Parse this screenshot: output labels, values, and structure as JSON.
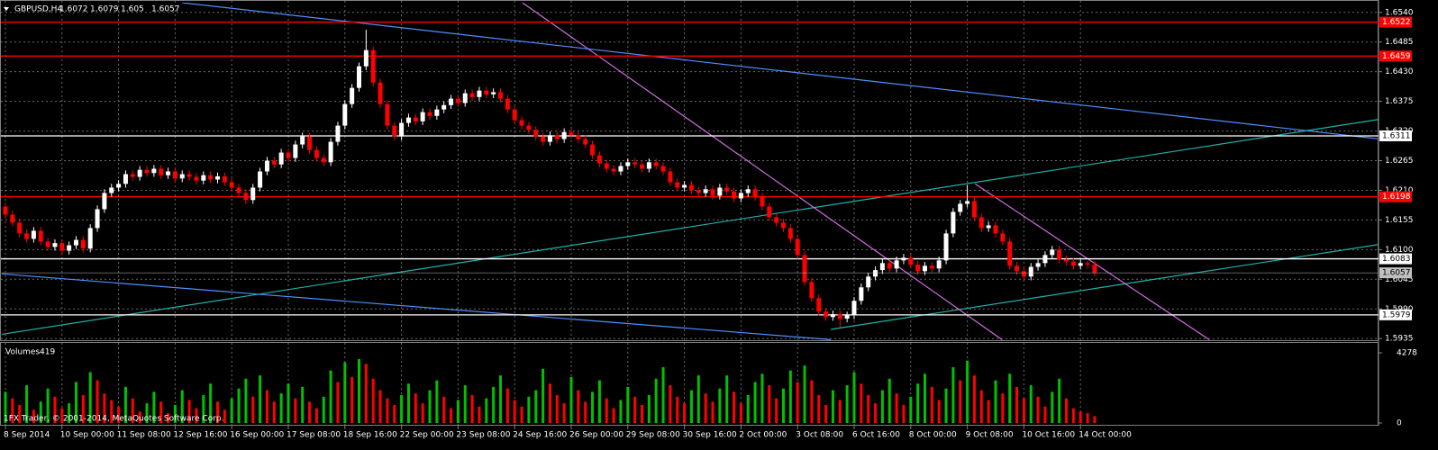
{
  "chart_data": {
    "type": "candlestick",
    "symbol": "GBPUSD,H4",
    "volume_title": "Volumes",
    "copyright": "1FX Trader, © 2001-2014, MetaQuotes Software Corp.",
    "up_color": "#ffffff",
    "down_color": "#ff0000",
    "volume_up_color": "#00c000",
    "volume_down_color": "#ff0000",
    "grid": true,
    "grid_color": "#6b6b6b",
    "ylim": [
      1.5932,
      1.6558
    ],
    "yticks": [
      {
        "value": 1.654,
        "label": "1.6540"
      },
      1.6485,
      {
        "value": 1.643,
        "label": "1.6430"
      },
      1.6375,
      {
        "value": 1.632,
        "label": "1.6320"
      },
      1.6265,
      {
        "value": 1.621,
        "label": "1.6210"
      },
      1.6155,
      {
        "value": 1.61,
        "label": "1.6100"
      },
      1.6045,
      {
        "value": 1.599,
        "label": "1.5990"
      },
      1.5935
    ],
    "vlim": [
      0,
      4278
    ],
    "vticks": [
      4278,
      0
    ],
    "bid_color": "#c0c0c0",
    "levels": [
      {
        "value": 1.6522,
        "color": "#ff0000"
      },
      {
        "value": 1.6459,
        "color": "#ff0000"
      },
      {
        "value": 1.6311,
        "color": "#ffffff"
      },
      {
        "value": 1.6198,
        "color": "#ff0000"
      },
      {
        "value": 1.6083,
        "color": "#ffffff"
      },
      {
        "value": 1.5979,
        "color": "#ffffff"
      }
    ],
    "trendlines": [
      {
        "color": "#4f8fff",
        "points": [
          [
            25,
            1.6558
          ],
          [
            194.4,
            1.6305
          ]
        ]
      },
      {
        "color": "#4f8fff",
        "points": [
          [
            -0.5,
            1.6055
          ],
          [
            116.7,
            1.5933
          ]
        ]
      },
      {
        "color": "#20b2aa",
        "points": [
          [
            -0.5,
            1.5943
          ],
          [
            194.4,
            1.6342
          ]
        ]
      },
      {
        "color": "#20b2aa",
        "points": [
          [
            116.7,
            1.5952
          ],
          [
            194.4,
            1.611
          ]
        ]
      },
      {
        "color": "#d070e0",
        "points": [
          [
            73.1,
            1.6558
          ],
          [
            140.9,
            1.5933
          ]
        ]
      },
      {
        "color": "#d070e0",
        "points": [
          [
            137.1,
            1.6222
          ],
          [
            170.2,
            1.5933
          ]
        ]
      }
    ],
    "categories": [
      "8 Sep 2014",
      null,
      null,
      null,
      null,
      null,
      null,
      null,
      "10 Sep 00:00",
      null,
      null,
      null,
      null,
      null,
      null,
      null,
      "11 Sep 08:00",
      null,
      null,
      null,
      null,
      null,
      null,
      null,
      "12 Sep 16:00",
      null,
      null,
      null,
      null,
      null,
      null,
      null,
      "16 Sep 00:00",
      null,
      null,
      null,
      null,
      null,
      null,
      null,
      "17 Sep 08:00",
      null,
      null,
      null,
      null,
      null,
      null,
      null,
      "18 Sep 16:00",
      null,
      null,
      null,
      null,
      null,
      null,
      null,
      "22 Sep 00:00",
      null,
      null,
      null,
      null,
      null,
      null,
      null,
      "23 Sep 08:00",
      null,
      null,
      null,
      null,
      null,
      null,
      null,
      "24 Sep 16:00",
      null,
      null,
      null,
      null,
      null,
      null,
      null,
      "26 Sep 00:00",
      null,
      null,
      null,
      null,
      null,
      null,
      null,
      "29 Sep 08:00",
      null,
      null,
      null,
      null,
      null,
      null,
      null,
      "30 Sep 16:00",
      null,
      null,
      null,
      null,
      null,
      null,
      null,
      "2 Oct 00:00",
      null,
      null,
      null,
      null,
      null,
      null,
      null,
      "3 Oct 08:00",
      null,
      null,
      null,
      null,
      null,
      null,
      null,
      "6 Oct 16:00",
      null,
      null,
      null,
      null,
      null,
      null,
      null,
      "8 Oct 00:00",
      null,
      null,
      null,
      null,
      null,
      null,
      null,
      "9 Oct 08:00",
      null,
      null,
      null,
      null,
      null,
      null,
      null,
      "10 Oct 16:00",
      null,
      null,
      null,
      null,
      null,
      null,
      null,
      "14 Oct 00:00",
      null,
      null
    ],
    "open": [
      1.618,
      1.6165,
      1.615,
      1.613,
      1.612,
      1.6135,
      1.6115,
      1.6105,
      1.6112,
      1.6098,
      1.6108,
      1.6118,
      1.6102,
      1.614,
      1.6175,
      1.6205,
      1.6215,
      1.6222,
      1.624,
      1.6235,
      1.6248,
      1.6242,
      1.625,
      1.6238,
      1.6245,
      1.6232,
      1.624,
      1.6235,
      1.6228,
      1.6238,
      1.623,
      1.6236,
      1.6225,
      1.6215,
      1.6205,
      1.6192,
      1.6215,
      1.6245,
      1.6265,
      1.6258,
      1.628,
      1.627,
      1.6295,
      1.631,
      1.6285,
      1.627,
      1.6262,
      1.63,
      1.633,
      1.637,
      1.64,
      1.644,
      1.647,
      1.641,
      1.637,
      1.633,
      1.631,
      1.6335,
      1.6345,
      1.6338,
      1.6355,
      1.6348,
      1.636,
      1.6368,
      1.638,
      1.6372,
      1.639,
      1.6383,
      1.6395,
      1.6388,
      1.6392,
      1.638,
      1.636,
      1.634,
      1.633,
      1.6322,
      1.631,
      1.63,
      1.6312,
      1.6305,
      1.6318,
      1.6312,
      1.6305,
      1.6295,
      1.6275,
      1.626,
      1.625,
      1.6245,
      1.6255,
      1.6262,
      1.6258,
      1.625,
      1.6262,
      1.6255,
      1.6245,
      1.6225,
      1.6215,
      1.622,
      1.621,
      1.6205,
      1.6212,
      1.62,
      1.6215,
      1.6208,
      1.6195,
      1.6205,
      1.6212,
      1.6198,
      1.618,
      1.616,
      1.615,
      1.614,
      1.612,
      1.609,
      1.604,
      1.601,
      1.5985,
      1.5975,
      1.598,
      1.5972,
      1.5978,
      1.6005,
      1.603,
      1.605,
      1.6062,
      1.6075,
      1.6065,
      1.608,
      1.6085,
      1.6072,
      1.606,
      1.607,
      1.6065,
      1.608,
      1.613,
      1.617,
      1.6185,
      1.619,
      1.616,
      1.614,
      1.6145,
      1.613,
      1.6115,
      1.607,
      1.606,
      1.605,
      1.6068,
      1.6075,
      1.609,
      1.61,
      1.6082,
      1.6078,
      1.607,
      1.6075,
      1.6072
    ],
    "high": [
      1.6187,
      1.6172,
      1.6157,
      1.6137,
      1.6142,
      1.6142,
      1.6122,
      1.6119,
      1.6119,
      1.6115,
      1.6125,
      1.6125,
      1.6147,
      1.6182,
      1.6212,
      1.6222,
      1.6229,
      1.6247,
      1.6247,
      1.6255,
      1.6255,
      1.6257,
      1.6257,
      1.6252,
      1.6252,
      1.6247,
      1.6247,
      1.6242,
      1.6245,
      1.6245,
      1.6243,
      1.6243,
      1.6232,
      1.6222,
      1.6212,
      1.6222,
      1.6252,
      1.6272,
      1.6272,
      1.6287,
      1.6287,
      1.6302,
      1.6317,
      1.6317,
      1.6292,
      1.6277,
      1.6307,
      1.6337,
      1.6377,
      1.6407,
      1.6447,
      1.6508,
      1.6477,
      1.6417,
      1.6377,
      1.6337,
      1.6342,
      1.6352,
      1.6352,
      1.6362,
      1.6362,
      1.6367,
      1.6375,
      1.6387,
      1.6387,
      1.6397,
      1.6397,
      1.6402,
      1.6402,
      1.6399,
      1.6399,
      1.6387,
      1.6367,
      1.6347,
      1.6337,
      1.6329,
      1.6317,
      1.6319,
      1.6319,
      1.6325,
      1.6325,
      1.6319,
      1.6312,
      1.6302,
      1.6282,
      1.6267,
      1.6257,
      1.6262,
      1.6269,
      1.6269,
      1.6265,
      1.6269,
      1.6269,
      1.6262,
      1.6252,
      1.6232,
      1.6227,
      1.6227,
      1.6217,
      1.6219,
      1.6219,
      1.6222,
      1.6222,
      1.6215,
      1.6212,
      1.6219,
      1.6219,
      1.6205,
      1.6187,
      1.6167,
      1.6157,
      1.6147,
      1.6127,
      1.6097,
      1.6047,
      1.6017,
      1.5992,
      1.5987,
      1.5987,
      1.5985,
      1.6012,
      1.6037,
      1.6057,
      1.6069,
      1.6082,
      1.6082,
      1.6087,
      1.6092,
      1.6092,
      1.6079,
      1.6077,
      1.6077,
      1.6087,
      1.6137,
      1.6177,
      1.6192,
      1.622,
      1.6197,
      1.6167,
      1.6152,
      1.6152,
      1.6137,
      1.6122,
      1.6077,
      1.6067,
      1.6075,
      1.6082,
      1.6097,
      1.6107,
      1.6107,
      1.6089,
      1.6085,
      1.6082,
      1.6079,
      1.6079
    ],
    "low": [
      1.6158,
      1.6143,
      1.6123,
      1.6113,
      1.6113,
      1.6108,
      1.6098,
      1.6098,
      1.6091,
      1.6091,
      1.6101,
      1.6095,
      1.6095,
      1.6133,
      1.6168,
      1.6198,
      1.6208,
      1.6215,
      1.6228,
      1.6228,
      1.6235,
      1.6235,
      1.6231,
      1.6231,
      1.6225,
      1.6225,
      1.6228,
      1.6221,
      1.6221,
      1.6223,
      1.6223,
      1.6218,
      1.6208,
      1.6198,
      1.6185,
      1.6185,
      1.6208,
      1.6238,
      1.6251,
      1.6251,
      1.6263,
      1.6263,
      1.6288,
      1.6278,
      1.6263,
      1.6255,
      1.6255,
      1.6293,
      1.6323,
      1.6363,
      1.6393,
      1.6433,
      1.6403,
      1.6363,
      1.6323,
      1.6303,
      1.6303,
      1.6328,
      1.6331,
      1.6331,
      1.6341,
      1.6341,
      1.6353,
      1.6361,
      1.6365,
      1.6365,
      1.6376,
      1.6376,
      1.6381,
      1.6381,
      1.6373,
      1.6353,
      1.6333,
      1.6323,
      1.6315,
      1.6303,
      1.6293,
      1.6293,
      1.6298,
      1.6298,
      1.6305,
      1.6298,
      1.6288,
      1.6268,
      1.6253,
      1.6243,
      1.6238,
      1.6238,
      1.6248,
      1.6251,
      1.6243,
      1.6243,
      1.6248,
      1.6238,
      1.6218,
      1.6208,
      1.6208,
      1.6203,
      1.6198,
      1.6198,
      1.6193,
      1.6193,
      1.6201,
      1.6188,
      1.6188,
      1.6198,
      1.6191,
      1.6173,
      1.6153,
      1.6143,
      1.6133,
      1.6113,
      1.6083,
      1.6033,
      1.6003,
      1.5978,
      1.5968,
      1.5968,
      1.5955,
      1.5965,
      1.5971,
      1.5998,
      1.6023,
      1.6043,
      1.6055,
      1.6058,
      1.6058,
      1.6073,
      1.6065,
      1.6053,
      1.6053,
      1.6058,
      1.6058,
      1.6073,
      1.6123,
      1.6163,
      1.6178,
      1.6153,
      1.6133,
      1.6133,
      1.6123,
      1.6108,
      1.6063,
      1.6053,
      1.6043,
      1.6043,
      1.6061,
      1.6068,
      1.6083,
      1.6075,
      1.6071,
      1.6063,
      1.6063,
      1.6065,
      1.605
    ],
    "close": [
      1.6165,
      1.615,
      1.613,
      1.612,
      1.6135,
      1.6115,
      1.6105,
      1.6112,
      1.6098,
      1.6108,
      1.6118,
      1.6102,
      1.614,
      1.6175,
      1.6205,
      1.6215,
      1.6222,
      1.624,
      1.6235,
      1.6248,
      1.6242,
      1.625,
      1.6238,
      1.6245,
      1.6232,
      1.624,
      1.6235,
      1.6228,
      1.6238,
      1.623,
      1.6236,
      1.6225,
      1.6215,
      1.6205,
      1.6192,
      1.6215,
      1.6245,
      1.6265,
      1.6258,
      1.628,
      1.627,
      1.6295,
      1.631,
      1.6285,
      1.627,
      1.6262,
      1.63,
      1.633,
      1.637,
      1.64,
      1.644,
      1.647,
      1.641,
      1.637,
      1.633,
      1.631,
      1.6335,
      1.6345,
      1.6338,
      1.6355,
      1.6348,
      1.636,
      1.6368,
      1.638,
      1.6372,
      1.639,
      1.6383,
      1.6395,
      1.6388,
      1.6392,
      1.638,
      1.636,
      1.634,
      1.633,
      1.6322,
      1.631,
      1.63,
      1.6312,
      1.6305,
      1.6318,
      1.6312,
      1.6305,
      1.6295,
      1.6275,
      1.626,
      1.625,
      1.6245,
      1.6255,
      1.6262,
      1.6258,
      1.625,
      1.6262,
      1.6255,
      1.6245,
      1.6225,
      1.6215,
      1.622,
      1.621,
      1.6205,
      1.6212,
      1.62,
      1.6215,
      1.6208,
      1.6195,
      1.6205,
      1.6212,
      1.6198,
      1.618,
      1.616,
      1.615,
      1.614,
      1.612,
      1.609,
      1.604,
      1.601,
      1.5985,
      1.5975,
      1.598,
      1.5972,
      1.5978,
      1.6005,
      1.603,
      1.605,
      1.6062,
      1.6075,
      1.6065,
      1.608,
      1.6085,
      1.6072,
      1.606,
      1.607,
      1.6065,
      1.608,
      1.613,
      1.617,
      1.6185,
      1.619,
      1.616,
      1.614,
      1.6145,
      1.613,
      1.6115,
      1.607,
      1.606,
      1.605,
      1.6068,
      1.6075,
      1.609,
      1.61,
      1.6082,
      1.6078,
      1.607,
      1.6075,
      1.6072,
      1.6057
    ],
    "volume": [
      1900,
      1500,
      1100,
      2300,
      800,
      1300,
      2100,
      1600,
      900,
      1200,
      2500,
      1700,
      3100,
      2600,
      1800,
      1400,
      1000,
      2200,
      1500,
      700,
      1200,
      1900,
      1300,
      600,
      1100,
      2000,
      1400,
      900,
      1700,
      2400,
      1300,
      800,
      1500,
      2100,
      2700,
      1600,
      2900,
      2000,
      1300,
      1800,
      2400,
      1500,
      2200,
      1300,
      900,
      1600,
      3200,
      2500,
      3700,
      2800,
      3900,
      3600,
      2700,
      2000,
      1500,
      1100,
      1700,
      2400,
      1800,
      1200,
      2000,
      2600,
      1600,
      900,
      1400,
      2300,
      1700,
      1000,
      1500,
      2200,
      2900,
      2100,
      1400,
      1000,
      1600,
      2000,
      3300,
      2400,
      1700,
      1200,
      2800,
      2000,
      1300,
      1900,
      2600,
      1500,
      900,
      1400,
      2200,
      1600,
      1100,
      1700,
      2700,
      3400,
      2300,
      1600,
      1200,
      2000,
      2900,
      1800,
      1300,
      2100,
      2900,
      1900,
      1200,
      1700,
      2500,
      3000,
      2300,
      1500,
      2100,
      3200,
      2500,
      3500,
      2600,
      1700,
      1100,
      2000,
      1400,
      2300,
      3100,
      2400,
      1700,
      1200,
      2000,
      2700,
      1800,
      1100,
      1600,
      2400,
      3000,
      2200,
      1400,
      2100,
      3400,
      2600,
      3800,
      2900,
      2000,
      1400,
      2600,
      1800,
      3000,
      2200,
      1500,
      2300,
      1600,
      1000,
      1900,
      2700,
      1500,
      900,
      700,
      600,
      419
    ]
  }
}
